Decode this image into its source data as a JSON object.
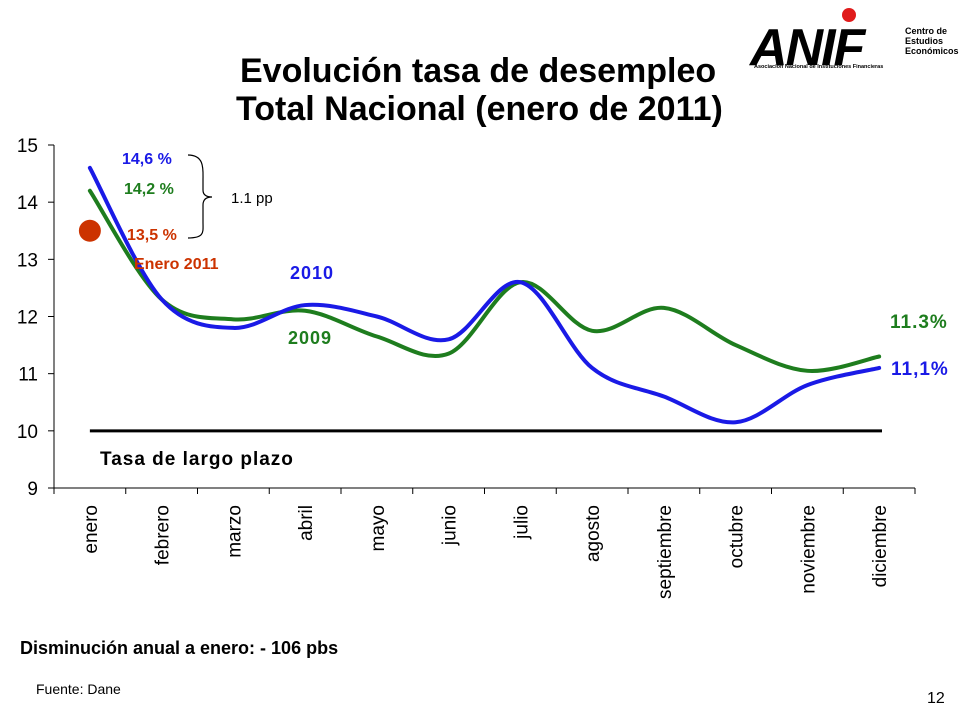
{
  "slide": {
    "title_line1": "Evolución tasa de desempleo",
    "title_line2": "Total Nacional (enero de 2011)",
    "note_decrease": "Disminución anual a enero: - 106 pbs",
    "source": "Fuente: Dane",
    "page_number": "12"
  },
  "logo": {
    "main": "ANIF",
    "side_line1": "Centro de",
    "side_line2": "Estudios",
    "side_line3": "Económicos",
    "subtitle": "Asociación Nacional de Instituciones Financieras",
    "dot_color": "#e01b1b"
  },
  "chart_data": {
    "type": "line",
    "categories": [
      "enero",
      "febrero",
      "marzo",
      "abril",
      "mayo",
      "junio",
      "julio",
      "agosto",
      "septiembre",
      "octubre",
      "noviembre",
      "diciembre"
    ],
    "y_ticks": [
      "15",
      "14",
      "13",
      "12",
      "11",
      "10",
      "9"
    ],
    "ylim": [
      9,
      15
    ],
    "grid": false,
    "series": [
      {
        "name": "2010",
        "color": "#1a1ae6",
        "values": [
          14.6,
          12.3,
          11.8,
          12.2,
          12.0,
          11.6,
          12.6,
          11.1,
          10.6,
          10.15,
          10.8,
          11.1
        ]
      },
      {
        "name": "2009",
        "color": "#1e7d1e",
        "values": [
          14.2,
          12.3,
          11.95,
          12.1,
          11.65,
          11.35,
          12.6,
          11.75,
          12.15,
          11.5,
          11.05,
          11.3
        ]
      }
    ],
    "point": {
      "label": "Enero 2011",
      "category": "enero",
      "value": 13.5,
      "color": "#cc3300"
    },
    "reference_line": {
      "label": "Tasa de largo plazo",
      "value": 10.0,
      "color": "#000000"
    },
    "annotations": {
      "label_2010_start": "14,6 %",
      "label_2009_start": "14,2 %",
      "label_2011": "13,5 %",
      "gap": "1.1 pp",
      "end_2009": "11.3%",
      "end_2010": "11,1%"
    }
  }
}
